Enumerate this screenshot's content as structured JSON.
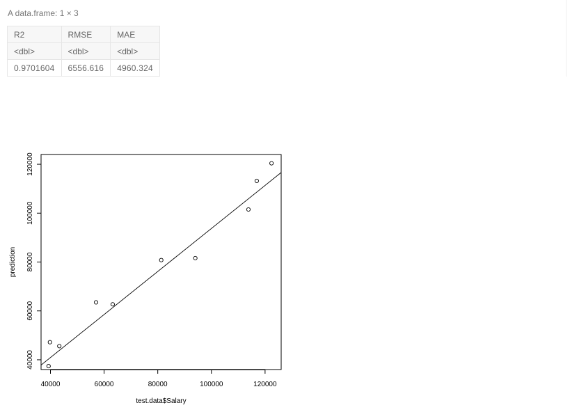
{
  "dataframe": {
    "caption": "A data.frame: 1 × 3",
    "columns": [
      "R2",
      "RMSE",
      "MAE"
    ],
    "types": [
      "<dbl>",
      "<dbl>",
      "<dbl>"
    ],
    "rows": [
      [
        "0.9701604",
        "6556.616",
        "4960.324"
      ]
    ]
  },
  "chart_data": {
    "type": "scatter",
    "xlabel": "test.data$Salary",
    "ylabel": "prediction",
    "xlim": [
      36500,
      126000
    ],
    "ylim": [
      36000,
      124000
    ],
    "xticks": [
      40000,
      60000,
      80000,
      100000,
      120000
    ],
    "yticks": [
      40000,
      60000,
      80000,
      100000,
      120000
    ],
    "xtick_labels": [
      "40000",
      "60000",
      "80000",
      "100000",
      "120000"
    ],
    "ytick_labels": [
      "40000",
      "60000",
      "80000",
      "100000",
      "120000"
    ],
    "points": [
      {
        "x": 39300,
        "y": 37400
      },
      {
        "x": 39800,
        "y": 47200
      },
      {
        "x": 43300,
        "y": 45600
      },
      {
        "x": 57000,
        "y": 63500
      },
      {
        "x": 63200,
        "y": 62700
      },
      {
        "x": 81300,
        "y": 80800
      },
      {
        "x": 94000,
        "y": 81600
      },
      {
        "x": 113800,
        "y": 101500
      },
      {
        "x": 116900,
        "y": 113200
      },
      {
        "x": 122400,
        "y": 120400
      }
    ],
    "fit_line": {
      "intercept": 5700,
      "slope": 0.8804
    },
    "grid": false,
    "colors": {
      "points": "#000000",
      "line": "#000000",
      "axes": "#000000"
    }
  }
}
